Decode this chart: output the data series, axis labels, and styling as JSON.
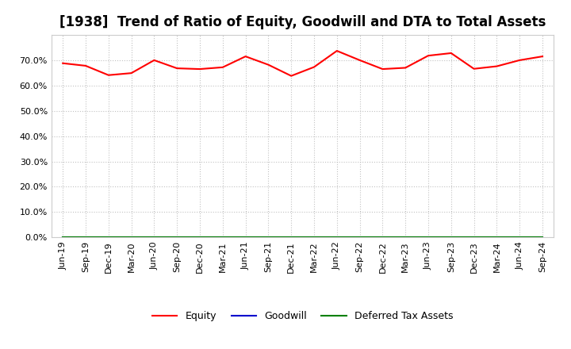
{
  "title": "[1938]  Trend of Ratio of Equity, Goodwill and DTA to Total Assets",
  "x_labels": [
    "Jun-19",
    "Sep-19",
    "Dec-19",
    "Mar-20",
    "Jun-20",
    "Sep-20",
    "Dec-20",
    "Mar-21",
    "Jun-21",
    "Sep-21",
    "Dec-21",
    "Mar-22",
    "Jun-22",
    "Sep-22",
    "Dec-22",
    "Mar-23",
    "Jun-23",
    "Sep-23",
    "Dec-23",
    "Mar-24",
    "Jun-24",
    "Sep-24"
  ],
  "equity": [
    0.688,
    0.678,
    0.641,
    0.649,
    0.7,
    0.668,
    0.665,
    0.672,
    0.715,
    0.682,
    0.638,
    0.673,
    0.737,
    0.7,
    0.665,
    0.67,
    0.718,
    0.728,
    0.666,
    0.676,
    0.7,
    0.715
  ],
  "goodwill": [
    0.0,
    0.0,
    0.0,
    0.0,
    0.0,
    0.0,
    0.0,
    0.0,
    0.0,
    0.0,
    0.0,
    0.0,
    0.0,
    0.0,
    0.0,
    0.0,
    0.0,
    0.0,
    0.0,
    0.0,
    0.0,
    0.0
  ],
  "dta": [
    0.0,
    0.0,
    0.0,
    0.0,
    0.0,
    0.0,
    0.0,
    0.0,
    0.0,
    0.0,
    0.0,
    0.0,
    0.0,
    0.0,
    0.0,
    0.0,
    0.0,
    0.0,
    0.0,
    0.0,
    0.0,
    0.0
  ],
  "equity_color": "#FF0000",
  "goodwill_color": "#0000CD",
  "dta_color": "#008000",
  "ylim": [
    0.0,
    0.8
  ],
  "yticks": [
    0.0,
    0.1,
    0.2,
    0.3,
    0.4,
    0.5,
    0.6,
    0.7
  ],
  "background_color": "#FFFFFF",
  "plot_bg_color": "#FFFFFF",
  "grid_color": "#BBBBBB",
  "title_fontsize": 12,
  "tick_fontsize": 8,
  "legend_labels": [
    "Equity",
    "Goodwill",
    "Deferred Tax Assets"
  ]
}
